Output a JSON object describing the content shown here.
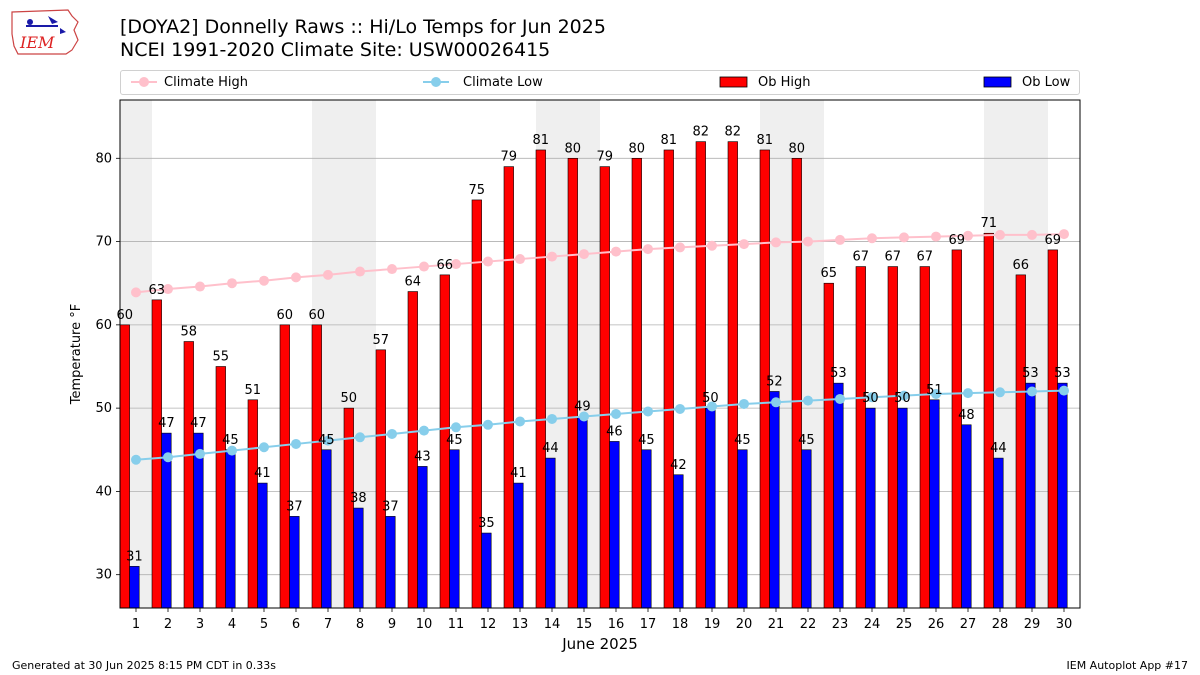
{
  "header": {
    "title_line1": "[DOYA2] Donnelly Raws :: Hi/Lo Temps for Jun 2025",
    "title_line2": "NCEI 1991-2020 Climate Site: USW00026415",
    "logo_text": "IEM"
  },
  "footer": {
    "generated": "Generated at 30 Jun 2025 8:15 PM CDT in 0.33s",
    "app": "IEM Autoplot App #17"
  },
  "colors": {
    "ob_high": "#ff0000",
    "ob_low": "#0000ff",
    "climate_high": "#ffc0cb",
    "climate_low": "#87ceeb",
    "weekend_shade": "#efefef",
    "grid": "#b0b0b0"
  },
  "chart_data": {
    "type": "bar",
    "title": "[DOYA2] Donnelly Raws :: Hi/Lo Temps for Jun 2025",
    "subtitle": "NCEI 1991-2020 Climate Site: USW00026415",
    "xlabel": "June 2025",
    "ylabel": "Temperature °F",
    "ylim": [
      26,
      87
    ],
    "yticks": [
      30,
      40,
      50,
      60,
      70,
      80
    ],
    "grid": true,
    "legend_placement": "top",
    "categories": [
      "1",
      "2",
      "3",
      "4",
      "5",
      "6",
      "7",
      "8",
      "9",
      "10",
      "11",
      "12",
      "13",
      "14",
      "15",
      "16",
      "17",
      "18",
      "19",
      "20",
      "21",
      "22",
      "23",
      "24",
      "25",
      "26",
      "27",
      "28",
      "29",
      "30"
    ],
    "shaded_days": [
      1,
      7,
      8,
      14,
      15,
      21,
      22,
      28,
      29
    ],
    "series": [
      {
        "name": "Ob High",
        "kind": "bar",
        "values": [
          60,
          63,
          58,
          55,
          51,
          60,
          60,
          50,
          57,
          64,
          66,
          75,
          79,
          81,
          80,
          79,
          80,
          81,
          82,
          82,
          81,
          80,
          65,
          67,
          67,
          67,
          69,
          71,
          66,
          69
        ]
      },
      {
        "name": "Ob Low",
        "kind": "bar",
        "values": [
          31,
          47,
          47,
          45,
          41,
          37,
          45,
          38,
          37,
          43,
          45,
          35,
          41,
          44,
          49,
          46,
          45,
          42,
          50,
          45,
          52,
          45,
          53,
          50,
          50,
          51,
          48,
          44,
          53,
          53
        ]
      },
      {
        "name": "Climate High",
        "kind": "line",
        "values": [
          63.9,
          64.3,
          64.6,
          65.0,
          65.3,
          65.7,
          66.0,
          66.4,
          66.7,
          67.0,
          67.3,
          67.6,
          67.9,
          68.2,
          68.5,
          68.8,
          69.1,
          69.3,
          69.5,
          69.7,
          69.9,
          70.0,
          70.2,
          70.4,
          70.5,
          70.6,
          70.7,
          70.8,
          70.8,
          70.9
        ]
      },
      {
        "name": "Climate Low",
        "kind": "line",
        "values": [
          43.8,
          44.1,
          44.5,
          44.9,
          45.3,
          45.7,
          46.1,
          46.5,
          46.9,
          47.3,
          47.7,
          48.0,
          48.4,
          48.7,
          49.0,
          49.3,
          49.6,
          49.9,
          50.2,
          50.5,
          50.7,
          50.9,
          51.1,
          51.3,
          51.5,
          51.7,
          51.8,
          51.9,
          52.0,
          52.1
        ]
      }
    ]
  }
}
